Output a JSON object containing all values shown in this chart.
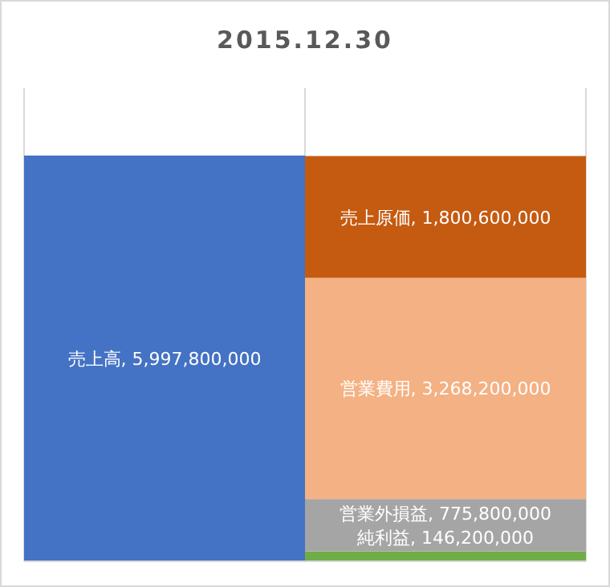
{
  "chart_data": {
    "type": "bar",
    "title": "2015.12.30",
    "categories": [
      null,
      null
    ],
    "stacked": true,
    "grid": "x",
    "series": [
      {
        "name": "売上高",
        "color": "#4472c4",
        "values": [
          5997800000,
          null
        ],
        "value_labels": [
          ", 5,997,800,000",
          null
        ]
      },
      {
        "name": "純利益",
        "color": "#70ad47",
        "values": [
          null,
          146200000
        ],
        "value_labels": [
          null,
          ", 146,200,000"
        ]
      },
      {
        "name": "営業外損益",
        "color": "#a5a5a5",
        "values": [
          null,
          775800000
        ],
        "value_labels": [
          null,
          ", 775,800,000"
        ]
      },
      {
        "name": "営業費用",
        "color": "#f4b183",
        "values": [
          null,
          3268200000
        ],
        "value_labels": [
          null,
          ", 3,268,200,000"
        ]
      },
      {
        "name": "売上原価",
        "color": "#c55a11",
        "values": [
          null,
          1800600000
        ],
        "value_labels": [
          null,
          ", 1,800,600,000"
        ]
      }
    ]
  }
}
